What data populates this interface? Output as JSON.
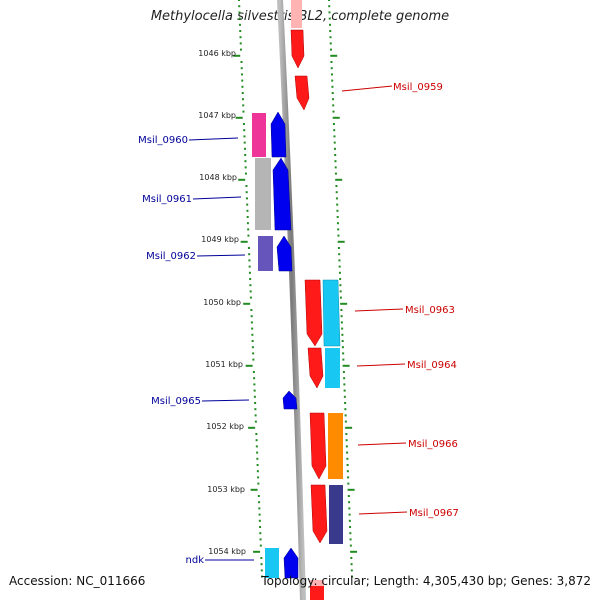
{
  "title": "Methylocella silvestris BL2, complete genome",
  "footer": {
    "accession": "Accession: NC_011666",
    "summary": "Topology: circular; Length: 4,305,430 bp; Genes: 3,872"
  },
  "colors": {
    "forward_label": "#cc0000",
    "reverse_label": "#000099",
    "scale_ticks": "#228b22",
    "backbone": "#888888"
  },
  "scale_labels": [
    "1046 kbp",
    "1047 kbp",
    "1048 kbp",
    "1049 kbp",
    "1050 kbp",
    "1051 kbp",
    "1052 kbp",
    "1053 kbp",
    "1054 kbp"
  ],
  "gene_labels": {
    "left": [
      "Msil_0960",
      "Msil_0961",
      "Msil_0962",
      "Msil_0965",
      "ndk"
    ],
    "right": [
      "Msil_0959",
      "Msil_0963",
      "Msil_0964",
      "Msil_0966",
      "Msil_0967"
    ]
  }
}
